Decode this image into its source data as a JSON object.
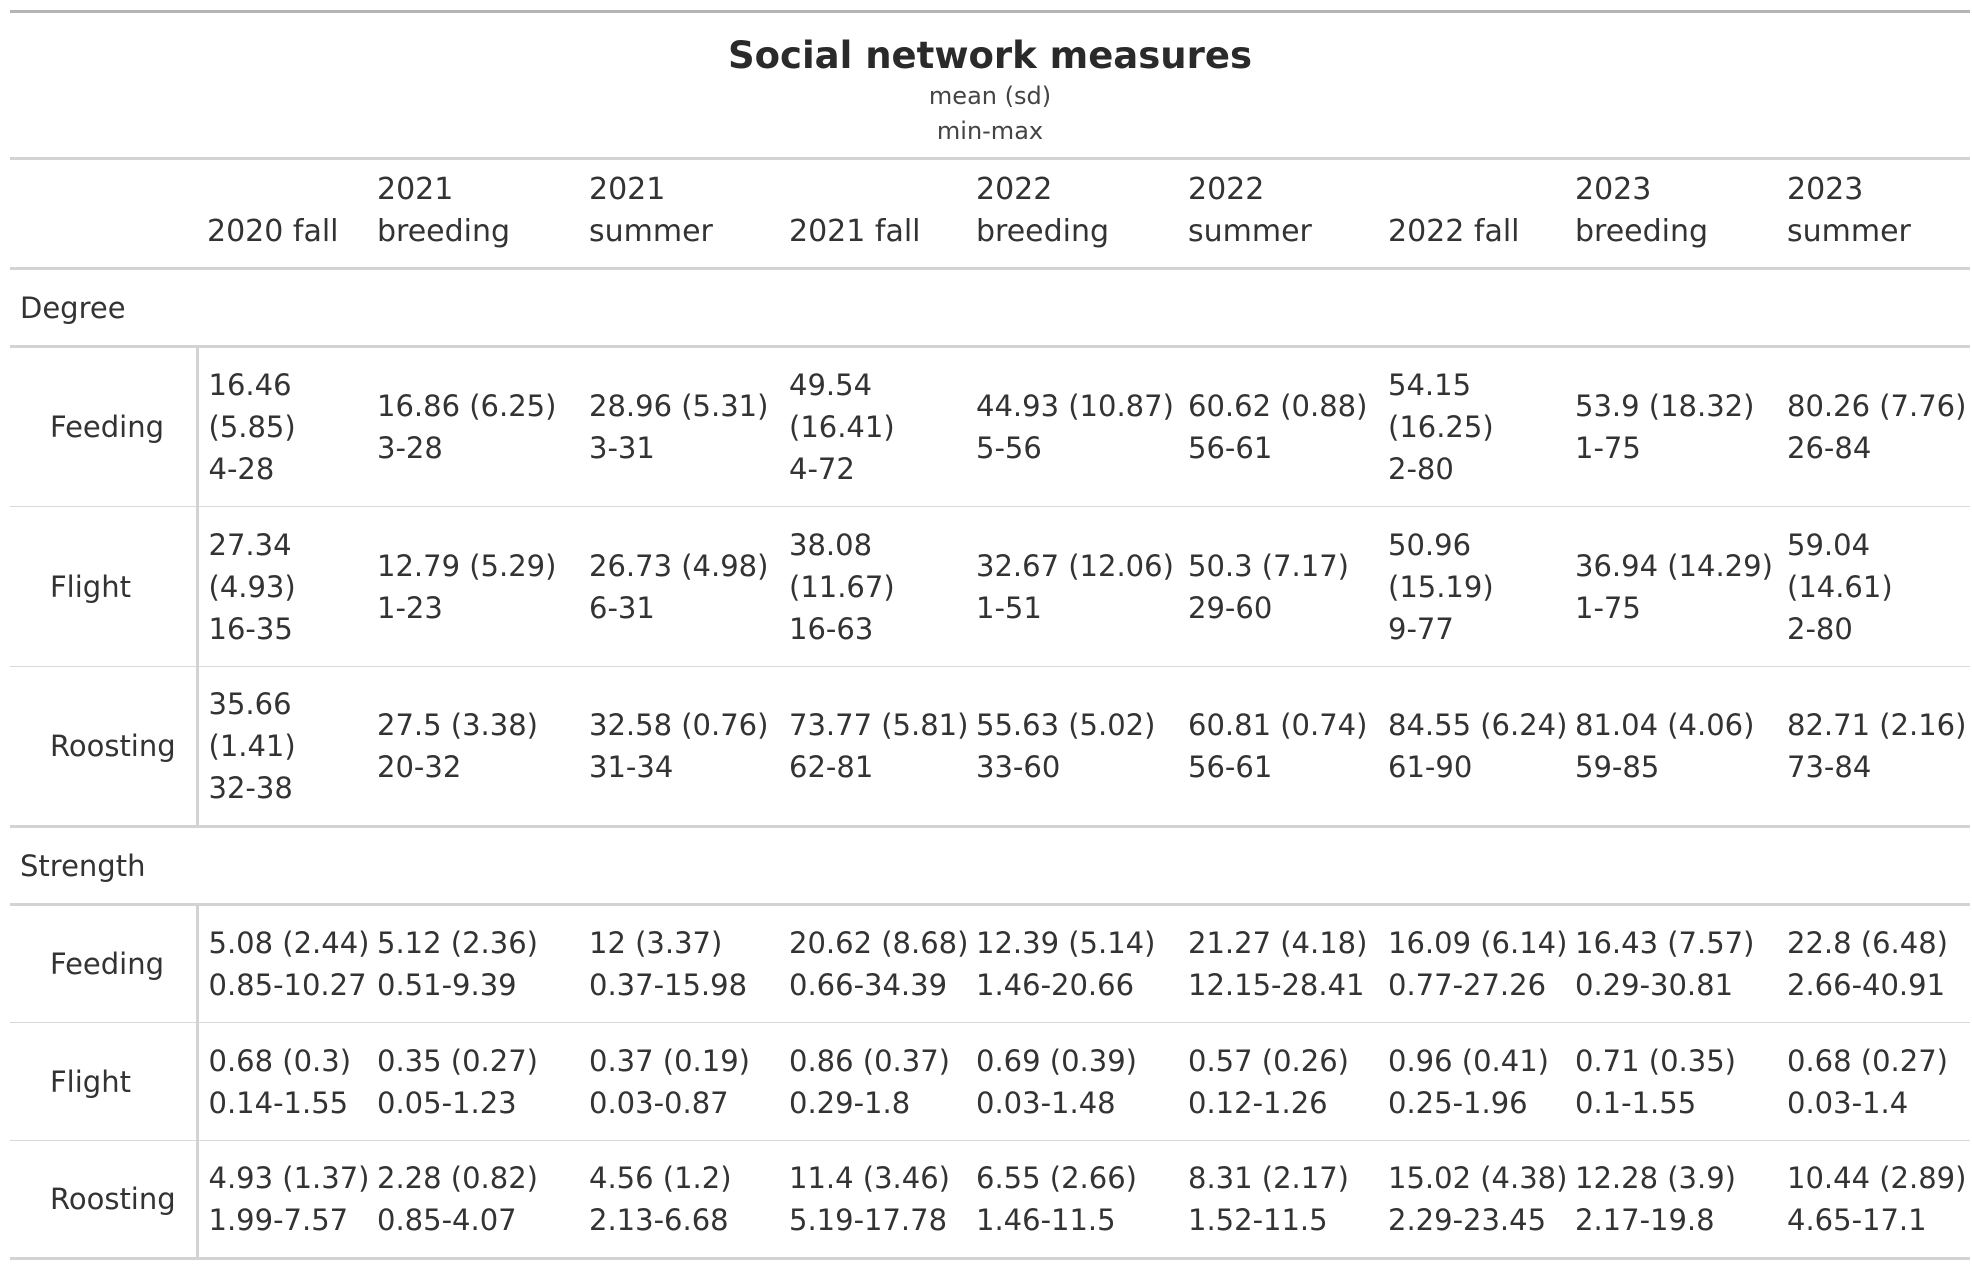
{
  "title": "Social network measures",
  "subtitle_line1": "mean (sd)",
  "subtitle_line2": "min-max",
  "columns": [
    {
      "line1": "",
      "line2": "2020 fall"
    },
    {
      "line1": "2021",
      "line2": "breeding"
    },
    {
      "line1": "2021",
      "line2": "summer"
    },
    {
      "line1": "",
      "line2": "2021 fall"
    },
    {
      "line1": "2022",
      "line2": "breeding"
    },
    {
      "line1": "2022",
      "line2": "summer"
    },
    {
      "line1": "",
      "line2": "2022 fall"
    },
    {
      "line1": "2023",
      "line2": "breeding"
    },
    {
      "line1": "2023",
      "line2": "summer"
    }
  ],
  "groups": [
    {
      "label": "Degree",
      "rows": [
        {
          "label": "Feeding",
          "cells": [
            [
              "16.46",
              "(5.85)",
              "4-28"
            ],
            [
              "16.86 (6.25)",
              "3-28"
            ],
            [
              "28.96 (5.31)",
              "3-31"
            ],
            [
              "49.54",
              "(16.41)",
              "4-72"
            ],
            [
              "44.93 (10.87)",
              "5-56"
            ],
            [
              "60.62 (0.88)",
              "56-61"
            ],
            [
              "54.15",
              "(16.25)",
              "2-80"
            ],
            [
              "53.9 (18.32)",
              "1-75"
            ],
            [
              "80.26 (7.76)",
              "26-84"
            ]
          ]
        },
        {
          "label": "Flight",
          "cells": [
            [
              "27.34",
              "(4.93)",
              "16-35"
            ],
            [
              "12.79 (5.29)",
              "1-23"
            ],
            [
              "26.73 (4.98)",
              "6-31"
            ],
            [
              "38.08",
              "(11.67)",
              "16-63"
            ],
            [
              "32.67 (12.06)",
              "1-51"
            ],
            [
              "50.3 (7.17)",
              "29-60"
            ],
            [
              "50.96",
              "(15.19)",
              "9-77"
            ],
            [
              "36.94 (14.29)",
              "1-75"
            ],
            [
              "59.04",
              "(14.61)",
              "2-80"
            ]
          ]
        },
        {
          "label": "Roosting",
          "cells": [
            [
              "35.66",
              "(1.41)",
              "32-38"
            ],
            [
              "27.5 (3.38)",
              "20-32"
            ],
            [
              "32.58 (0.76)",
              "31-34"
            ],
            [
              "73.77 (5.81)",
              "62-81"
            ],
            [
              "55.63 (5.02)",
              "33-60"
            ],
            [
              "60.81 (0.74)",
              "56-61"
            ],
            [
              "84.55 (6.24)",
              "61-90"
            ],
            [
              "81.04 (4.06)",
              "59-85"
            ],
            [
              "82.71 (2.16)",
              "73-84"
            ]
          ]
        }
      ]
    },
    {
      "label": "Strength",
      "rows": [
        {
          "label": "Feeding",
          "cells": [
            [
              "5.08 (2.44)",
              "0.85-10.27"
            ],
            [
              "5.12 (2.36)",
              "0.51-9.39"
            ],
            [
              "12 (3.37)",
              "0.37-15.98"
            ],
            [
              "20.62 (8.68)",
              "0.66-34.39"
            ],
            [
              "12.39 (5.14)",
              "1.46-20.66"
            ],
            [
              "21.27 (4.18)",
              "12.15-28.41"
            ],
            [
              "16.09 (6.14)",
              "0.77-27.26"
            ],
            [
              "16.43 (7.57)",
              "0.29-30.81"
            ],
            [
              "22.8 (6.48)",
              "2.66-40.91"
            ]
          ]
        },
        {
          "label": "Flight",
          "cells": [
            [
              "0.68 (0.3)",
              "0.14-1.55"
            ],
            [
              "0.35 (0.27)",
              "0.05-1.23"
            ],
            [
              "0.37 (0.19)",
              "0.03-0.87"
            ],
            [
              "0.86 (0.37)",
              "0.29-1.8"
            ],
            [
              "0.69 (0.39)",
              "0.03-1.48"
            ],
            [
              "0.57 (0.26)",
              "0.12-1.26"
            ],
            [
              "0.96 (0.41)",
              "0.25-1.96"
            ],
            [
              "0.71 (0.35)",
              "0.1-1.55"
            ],
            [
              "0.68 (0.27)",
              "0.03-1.4"
            ]
          ]
        },
        {
          "label": "Roosting",
          "cells": [
            [
              "4.93 (1.37)",
              "1.99-7.57"
            ],
            [
              "2.28 (0.82)",
              "0.85-4.07"
            ],
            [
              "4.56 (1.2)",
              "2.13-6.68"
            ],
            [
              "11.4 (3.46)",
              "5.19-17.78"
            ],
            [
              "6.55 (2.66)",
              "1.46-11.5"
            ],
            [
              "8.31 (2.17)",
              "1.52-11.5"
            ],
            [
              "15.02 (4.38)",
              "2.29-23.45"
            ],
            [
              "12.28 (3.9)",
              "2.17-19.8"
            ],
            [
              "10.44 (2.89)",
              "4.65-17.1"
            ]
          ]
        }
      ]
    }
  ]
}
